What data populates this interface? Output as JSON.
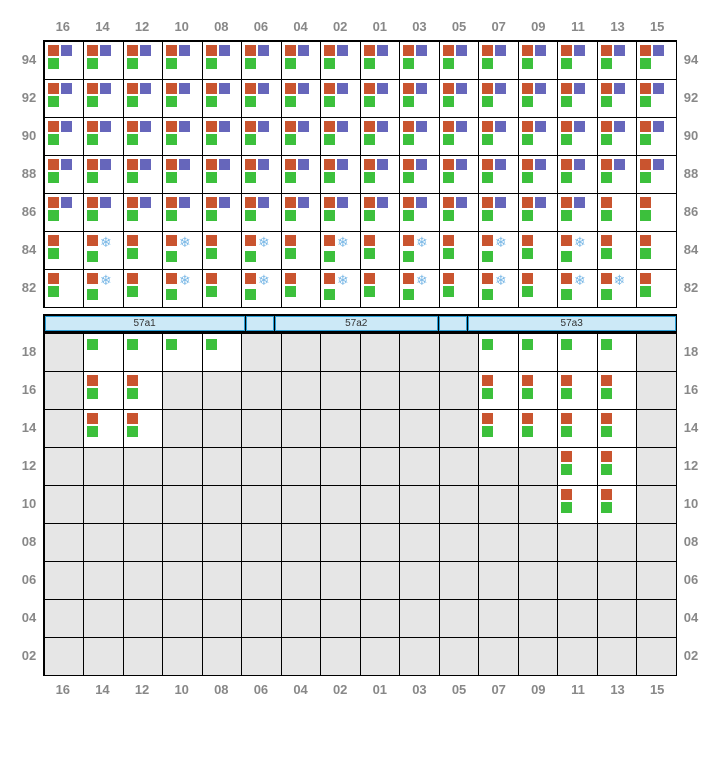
{
  "columns": [
    "16",
    "14",
    "12",
    "10",
    "08",
    "06",
    "04",
    "02",
    "01",
    "03",
    "05",
    "07",
    "09",
    "11",
    "13",
    "15"
  ],
  "top_rows": [
    "94",
    "92",
    "90",
    "88",
    "86",
    "84",
    "82"
  ],
  "bottom_rows": [
    "18",
    "16",
    "14",
    "12",
    "10",
    "08",
    "06",
    "04",
    "02"
  ],
  "zones": [
    {
      "label": "57a1",
      "cls": "z1"
    },
    {
      "label": "",
      "cls": "gap"
    },
    {
      "label": "57a2",
      "cls": "z2"
    },
    {
      "label": "",
      "cls": "gap"
    },
    {
      "label": "57a3",
      "cls": "z3"
    }
  ],
  "colors": {
    "orange": "#c9542f",
    "purple": "#6666bb",
    "green": "#3cc03c",
    "snow": "#7ab8e6",
    "cell_bg": "#ffffff",
    "empty_bg": "#e6e6e6",
    "border": "#000000",
    "label": "#888888"
  },
  "cell_types": {
    "A": {
      "top": [
        "orange",
        "purple"
      ],
      "bot": [
        "green"
      ]
    },
    "B": {
      "top": [
        "orange"
      ],
      "bot": [
        "green"
      ],
      "topright": "snow"
    },
    "C": {
      "top": [
        "orange"
      ],
      "bot": [
        "green"
      ]
    },
    "D": {
      "top": [],
      "bot": [
        "green"
      ]
    },
    "E": {
      "top": [],
      "bot": []
    }
  },
  "top_grid": [
    [
      "A",
      "A",
      "A",
      "A",
      "A",
      "A",
      "A",
      "A",
      "A",
      "A",
      "A",
      "A",
      "A",
      "A",
      "A",
      "A"
    ],
    [
      "A",
      "A",
      "A",
      "A",
      "A",
      "A",
      "A",
      "A",
      "A",
      "A",
      "A",
      "A",
      "A",
      "A",
      "A",
      "A"
    ],
    [
      "A",
      "A",
      "A",
      "A",
      "A",
      "A",
      "A",
      "A",
      "A",
      "A",
      "A",
      "A",
      "A",
      "A",
      "A",
      "A"
    ],
    [
      "A",
      "A",
      "A",
      "A",
      "A",
      "A",
      "A",
      "A",
      "A",
      "A",
      "A",
      "A",
      "A",
      "A",
      "A",
      "A"
    ],
    [
      "A",
      "A",
      "A",
      "A",
      "A",
      "A",
      "A",
      "A",
      "A",
      "A",
      "A",
      "A",
      "A",
      "A",
      "C",
      "C"
    ],
    [
      "C",
      "B",
      "C",
      "B",
      "C",
      "B",
      "C",
      "B",
      "C",
      "B",
      "C",
      "B",
      "C",
      "B",
      "C",
      "C"
    ],
    [
      "C",
      "B",
      "C",
      "B",
      "C",
      "B",
      "C",
      "B",
      "C",
      "B",
      "C",
      "B",
      "C",
      "B",
      "B",
      "C"
    ]
  ],
  "bottom_grid": [
    [
      "E",
      "D",
      "D",
      "D",
      "D",
      "E",
      "E",
      "E",
      "E",
      "E",
      "E",
      "D",
      "D",
      "D",
      "D",
      "E"
    ],
    [
      "E",
      "C",
      "C",
      "E",
      "E",
      "E",
      "E",
      "E",
      "E",
      "E",
      "E",
      "C",
      "C",
      "C",
      "C",
      "E"
    ],
    [
      "E",
      "C",
      "C",
      "E",
      "E",
      "E",
      "E",
      "E",
      "E",
      "E",
      "E",
      "C",
      "C",
      "C",
      "C",
      "E"
    ],
    [
      "E",
      "E",
      "E",
      "E",
      "E",
      "E",
      "E",
      "E",
      "E",
      "E",
      "E",
      "E",
      "E",
      "C",
      "C",
      "E"
    ],
    [
      "E",
      "E",
      "E",
      "E",
      "E",
      "E",
      "E",
      "E",
      "E",
      "E",
      "E",
      "E",
      "E",
      "C",
      "C",
      "E"
    ],
    [
      "E",
      "E",
      "E",
      "E",
      "E",
      "E",
      "E",
      "E",
      "E",
      "E",
      "E",
      "E",
      "E",
      "E",
      "E",
      "E"
    ],
    [
      "E",
      "E",
      "E",
      "E",
      "E",
      "E",
      "E",
      "E",
      "E",
      "E",
      "E",
      "E",
      "E",
      "E",
      "E",
      "E"
    ],
    [
      "E",
      "E",
      "E",
      "E",
      "E",
      "E",
      "E",
      "E",
      "E",
      "E",
      "E",
      "E",
      "E",
      "E",
      "E",
      "E"
    ],
    [
      "E",
      "E",
      "E",
      "E",
      "E",
      "E",
      "E",
      "E",
      "E",
      "E",
      "E",
      "E",
      "E",
      "E",
      "E",
      "E"
    ]
  ]
}
